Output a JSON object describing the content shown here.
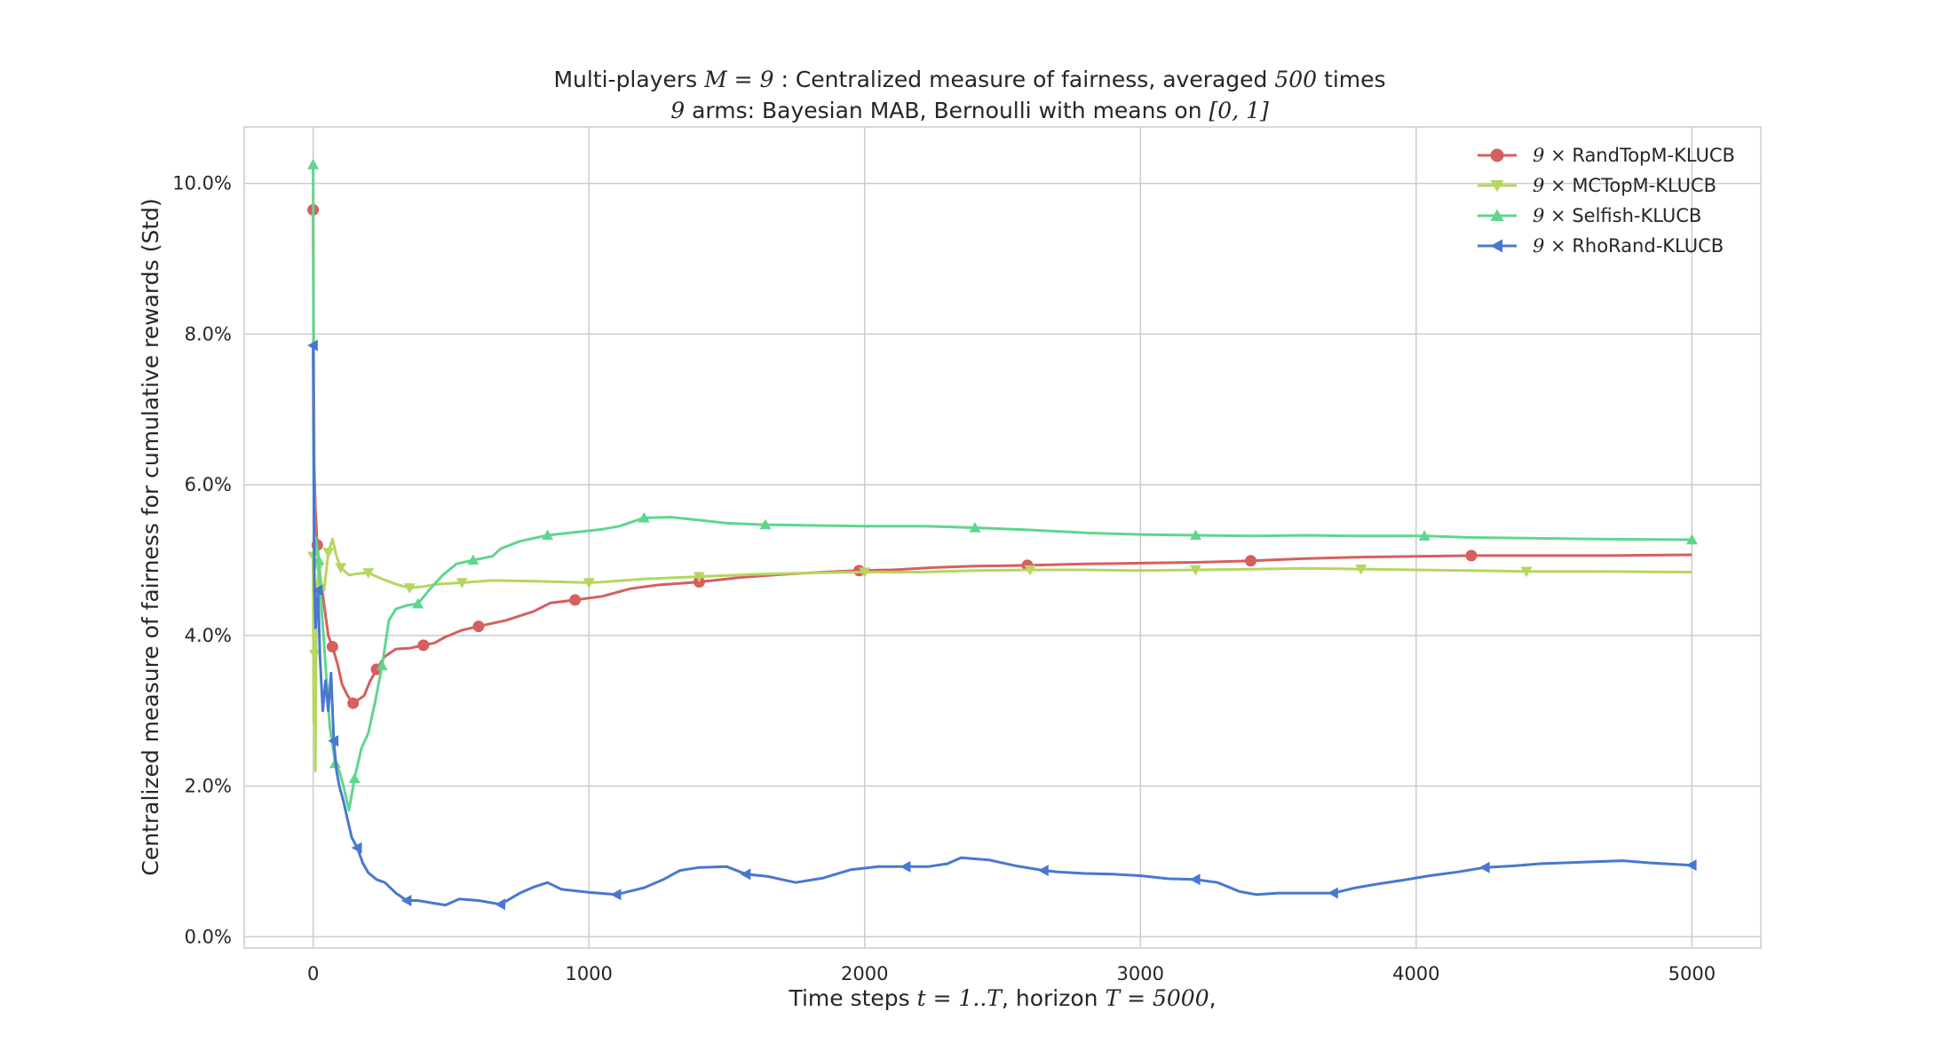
{
  "chart_data": {
    "type": "line",
    "title": {
      "line1": {
        "prefix": "Multi-players ",
        "math1": "M = 9",
        "middle": " : Centralized measure of fairness, averaged ",
        "math2": "500",
        "suffix": " times"
      },
      "line2": {
        "math1": "9",
        "middle": " arms: Bayesian MAB, Bernoulli with means on ",
        "math2": "[0, 1]"
      }
    },
    "xlabel": {
      "prefix": "Time steps ",
      "math1": "t = 1..T",
      "middle": ", horizon ",
      "math2": "T = 5000",
      "suffix": ","
    },
    "ylabel": "Centralized measure of fairness for cumulative rewards (Std)",
    "xlim": [
      -250,
      5250
    ],
    "ylim": [
      -0.0015,
      0.1075
    ],
    "x_ticks": [
      0,
      1000,
      2000,
      3000,
      4000,
      5000
    ],
    "x_tick_labels": [
      "0",
      "1000",
      "2000",
      "3000",
      "4000",
      "5000"
    ],
    "y_ticks": [
      0.0,
      0.02,
      0.04,
      0.06,
      0.08,
      0.1
    ],
    "y_tick_labels": [
      "0.0%",
      "2.0%",
      "4.0%",
      "6.0%",
      "8.0%",
      "10.0%"
    ],
    "grid": true,
    "legend_position": "top-right",
    "series": [
      {
        "name": "RandTopM-KLUCB",
        "legend_math": "9 ×",
        "color": "#d65f5f",
        "marker": "circle",
        "points": [
          [
            0,
            0.0965
          ],
          [
            2,
            0.075
          ],
          [
            4,
            0.0622
          ],
          [
            8,
            0.057
          ],
          [
            15,
            0.052
          ],
          [
            25,
            0.048
          ],
          [
            40,
            0.044
          ],
          [
            55,
            0.04
          ],
          [
            70,
            0.0385
          ],
          [
            90,
            0.036
          ],
          [
            105,
            0.0335
          ],
          [
            125,
            0.032
          ],
          [
            145,
            0.031
          ],
          [
            165,
            0.0315
          ],
          [
            185,
            0.032
          ],
          [
            205,
            0.0338
          ],
          [
            230,
            0.0355
          ],
          [
            260,
            0.0372
          ],
          [
            300,
            0.0382
          ],
          [
            350,
            0.0383
          ],
          [
            400,
            0.0387
          ],
          [
            440,
            0.039
          ],
          [
            480,
            0.0398
          ],
          [
            540,
            0.0407
          ],
          [
            600,
            0.0412
          ],
          [
            700,
            0.042
          ],
          [
            800,
            0.0432
          ],
          [
            860,
            0.0443
          ],
          [
            950,
            0.0447
          ],
          [
            1050,
            0.0452
          ],
          [
            1150,
            0.0462
          ],
          [
            1250,
            0.0467
          ],
          [
            1400,
            0.0471
          ],
          [
            1550,
            0.0477
          ],
          [
            1700,
            0.0481
          ],
          [
            1850,
            0.0484
          ],
          [
            1980,
            0.0486
          ],
          [
            2100,
            0.0487
          ],
          [
            2250,
            0.049
          ],
          [
            2400,
            0.0492
          ],
          [
            2590,
            0.0493
          ],
          [
            2800,
            0.0495
          ],
          [
            3000,
            0.0496
          ],
          [
            3200,
            0.0497
          ],
          [
            3400,
            0.0499
          ],
          [
            3600,
            0.0502
          ],
          [
            3800,
            0.0504
          ],
          [
            4000,
            0.0505
          ],
          [
            4200,
            0.0506
          ],
          [
            4430,
            0.0506
          ],
          [
            4700,
            0.0506
          ],
          [
            5000,
            0.0507
          ]
        ]
      },
      {
        "name": "MCTopM-KLUCB",
        "legend_math": "9 ×",
        "color": "#b5d65f",
        "marker": "triangle-down",
        "points": [
          [
            0,
            0.0505
          ],
          [
            2,
            0.0285
          ],
          [
            4,
            0.0332
          ],
          [
            6,
            0.0375
          ],
          [
            8,
            0.022
          ],
          [
            12,
            0.045
          ],
          [
            20,
            0.049
          ],
          [
            30,
            0.047
          ],
          [
            40,
            0.046
          ],
          [
            55,
            0.051
          ],
          [
            70,
            0.0528
          ],
          [
            85,
            0.0505
          ],
          [
            100,
            0.049
          ],
          [
            130,
            0.048
          ],
          [
            160,
            0.0482
          ],
          [
            200,
            0.0483
          ],
          [
            250,
            0.0475
          ],
          [
            300,
            0.0468
          ],
          [
            350,
            0.0463
          ],
          [
            400,
            0.0465
          ],
          [
            450,
            0.0468
          ],
          [
            540,
            0.047
          ],
          [
            650,
            0.0473
          ],
          [
            800,
            0.0472
          ],
          [
            1000,
            0.047
          ],
          [
            1050,
            0.0471
          ],
          [
            1200,
            0.0475
          ],
          [
            1400,
            0.0478
          ],
          [
            1590,
            0.0481
          ],
          [
            1800,
            0.0483
          ],
          [
            2000,
            0.0484
          ],
          [
            2200,
            0.0484
          ],
          [
            2400,
            0.0486
          ],
          [
            2600,
            0.0487
          ],
          [
            2800,
            0.0487
          ],
          [
            3000,
            0.0486
          ],
          [
            3200,
            0.0487
          ],
          [
            3420,
            0.0488
          ],
          [
            3600,
            0.0489
          ],
          [
            3800,
            0.0488
          ],
          [
            4000,
            0.0487
          ],
          [
            4200,
            0.0486
          ],
          [
            4400,
            0.0485
          ],
          [
            4650,
            0.0485
          ],
          [
            5000,
            0.0484
          ]
        ]
      },
      {
        "name": "Selfish-KLUCB",
        "legend_math": "9 ×",
        "color": "#5fd68d",
        "marker": "triangle-up",
        "points": [
          [
            0,
            0.1025
          ],
          [
            2,
            0.0655
          ],
          [
            5,
            0.05
          ],
          [
            10,
            0.053
          ],
          [
            20,
            0.05
          ],
          [
            30,
            0.044
          ],
          [
            45,
            0.036
          ],
          [
            60,
            0.028
          ],
          [
            80,
            0.023
          ],
          [
            95,
            0.022
          ],
          [
            110,
            0.02
          ],
          [
            130,
            0.0168
          ],
          [
            150,
            0.021
          ],
          [
            175,
            0.025
          ],
          [
            200,
            0.027
          ],
          [
            225,
            0.0312
          ],
          [
            250,
            0.036
          ],
          [
            275,
            0.042
          ],
          [
            300,
            0.0435
          ],
          [
            340,
            0.044
          ],
          [
            380,
            0.0442
          ],
          [
            420,
            0.046
          ],
          [
            470,
            0.048
          ],
          [
            520,
            0.0495
          ],
          [
            580,
            0.05
          ],
          [
            650,
            0.0505
          ],
          [
            680,
            0.0515
          ],
          [
            750,
            0.0525
          ],
          [
            850,
            0.0533
          ],
          [
            950,
            0.0537
          ],
          [
            1050,
            0.0541
          ],
          [
            1110,
            0.0545
          ],
          [
            1200,
            0.0556
          ],
          [
            1300,
            0.0557
          ],
          [
            1400,
            0.0553
          ],
          [
            1500,
            0.0549
          ],
          [
            1640,
            0.0547
          ],
          [
            1800,
            0.0546
          ],
          [
            2000,
            0.0545
          ],
          [
            2220,
            0.0545
          ],
          [
            2400,
            0.0543
          ],
          [
            2600,
            0.054
          ],
          [
            2810,
            0.0536
          ],
          [
            3000,
            0.0534
          ],
          [
            3200,
            0.0533
          ],
          [
            3420,
            0.0532
          ],
          [
            3600,
            0.0533
          ],
          [
            3800,
            0.0532
          ],
          [
            4030,
            0.0532
          ],
          [
            4200,
            0.053
          ],
          [
            4400,
            0.0529
          ],
          [
            4650,
            0.0528
          ],
          [
            5000,
            0.0527
          ]
        ]
      },
      {
        "name": "RhoRand-KLUCB",
        "legend_math": "9 ×",
        "color": "#4878d0",
        "marker": "triangle-left",
        "points": [
          [
            0,
            0.0785
          ],
          [
            2,
            0.063
          ],
          [
            4,
            0.049
          ],
          [
            6,
            0.045
          ],
          [
            9,
            0.041
          ],
          [
            12,
            0.043
          ],
          [
            18,
            0.046
          ],
          [
            25,
            0.037
          ],
          [
            35,
            0.03
          ],
          [
            45,
            0.034
          ],
          [
            55,
            0.03
          ],
          [
            65,
            0.035
          ],
          [
            75,
            0.026
          ],
          [
            85,
            0.022
          ],
          [
            95,
            0.02
          ],
          [
            110,
            0.018
          ],
          [
            125,
            0.0155
          ],
          [
            140,
            0.0132
          ],
          [
            160,
            0.0118
          ],
          [
            180,
            0.0098
          ],
          [
            200,
            0.0085
          ],
          [
            230,
            0.0076
          ],
          [
            260,
            0.0072
          ],
          [
            300,
            0.0058
          ],
          [
            340,
            0.0048
          ],
          [
            380,
            0.0048
          ],
          [
            430,
            0.0045
          ],
          [
            480,
            0.0042
          ],
          [
            530,
            0.005
          ],
          [
            600,
            0.0048
          ],
          [
            680,
            0.0043
          ],
          [
            750,
            0.0058
          ],
          [
            800,
            0.0066
          ],
          [
            850,
            0.0072
          ],
          [
            900,
            0.0063
          ],
          [
            1000,
            0.0059
          ],
          [
            1100,
            0.0056
          ],
          [
            1200,
            0.0065
          ],
          [
            1270,
            0.0076
          ],
          [
            1330,
            0.0088
          ],
          [
            1400,
            0.0092
          ],
          [
            1500,
            0.0093
          ],
          [
            1570,
            0.0083
          ],
          [
            1650,
            0.008
          ],
          [
            1750,
            0.0072
          ],
          [
            1850,
            0.0078
          ],
          [
            1950,
            0.0089
          ],
          [
            2050,
            0.0093
          ],
          [
            2150,
            0.0093
          ],
          [
            2230,
            0.0093
          ],
          [
            2300,
            0.0097
          ],
          [
            2350,
            0.0105
          ],
          [
            2450,
            0.0102
          ],
          [
            2550,
            0.0094
          ],
          [
            2650,
            0.0088
          ],
          [
            2700,
            0.0086
          ],
          [
            2800,
            0.0084
          ],
          [
            2900,
            0.0083
          ],
          [
            3000,
            0.0081
          ],
          [
            3100,
            0.0077
          ],
          [
            3200,
            0.0076
          ],
          [
            3280,
            0.0072
          ],
          [
            3360,
            0.006
          ],
          [
            3420,
            0.0056
          ],
          [
            3500,
            0.0058
          ],
          [
            3600,
            0.0058
          ],
          [
            3700,
            0.0058
          ],
          [
            3780,
            0.0065
          ],
          [
            3860,
            0.007
          ],
          [
            3950,
            0.0075
          ],
          [
            4050,
            0.0081
          ],
          [
            4150,
            0.0086
          ],
          [
            4250,
            0.0092
          ],
          [
            4350,
            0.0094
          ],
          [
            4450,
            0.0097
          ],
          [
            4600,
            0.0099
          ],
          [
            4750,
            0.0101
          ],
          [
            4850,
            0.0098
          ],
          [
            5000,
            0.0095
          ]
        ]
      }
    ]
  }
}
